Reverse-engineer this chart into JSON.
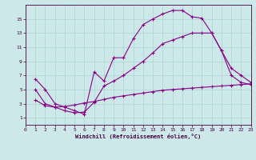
{
  "xlabel": "Windchill (Refroidissement éolien,°C)",
  "background_color": "#cce8e8",
  "line_color": "#880088",
  "xlim": [
    0,
    23
  ],
  "ylim": [
    0,
    17
  ],
  "xticks": [
    0,
    1,
    2,
    3,
    4,
    5,
    6,
    7,
    8,
    9,
    10,
    11,
    12,
    13,
    14,
    15,
    16,
    17,
    18,
    19,
    20,
    21,
    22,
    23
  ],
  "yticks": [
    1,
    3,
    5,
    7,
    9,
    11,
    13,
    15
  ],
  "grid_color": "#aad4d4",
  "curve1_x": [
    1,
    2,
    3,
    4,
    5,
    6,
    7,
    8,
    9,
    10,
    11,
    12,
    13,
    14,
    15,
    16,
    17,
    18,
    19,
    20,
    21,
    22,
    23
  ],
  "curve1_y": [
    6.5,
    5.0,
    3.0,
    2.5,
    2.0,
    1.5,
    7.5,
    6.2,
    9.5,
    9.5,
    12.2,
    14.2,
    15.0,
    15.7,
    16.2,
    16.2,
    15.3,
    15.1,
    13.0,
    10.5,
    7.0,
    6.0,
    5.7
  ],
  "curve2_x": [
    1,
    2,
    3,
    4,
    5,
    6,
    7,
    8,
    9,
    10,
    11,
    12,
    13,
    14,
    15,
    16,
    17,
    18,
    19,
    20,
    21,
    22,
    23
  ],
  "curve2_y": [
    5.0,
    3.0,
    2.5,
    2.0,
    1.7,
    1.8,
    3.2,
    5.5,
    6.2,
    7.0,
    8.0,
    9.0,
    10.2,
    11.5,
    12.0,
    12.5,
    13.0,
    13.0,
    13.0,
    10.5,
    8.0,
    7.0,
    6.0
  ],
  "curve3_x": [
    1,
    2,
    3,
    4,
    5,
    6,
    7,
    8,
    9,
    10,
    11,
    12,
    13,
    14,
    15,
    16,
    17,
    18,
    19,
    20,
    21,
    22,
    23
  ],
  "curve3_y": [
    3.5,
    2.7,
    2.5,
    2.6,
    2.8,
    3.1,
    3.3,
    3.6,
    3.9,
    4.1,
    4.3,
    4.5,
    4.7,
    4.9,
    5.0,
    5.1,
    5.2,
    5.3,
    5.4,
    5.5,
    5.6,
    5.7,
    5.8
  ]
}
